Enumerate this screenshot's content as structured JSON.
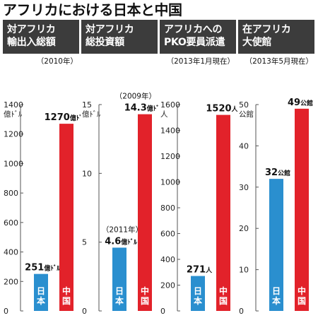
{
  "title": "アフリカにおける日本と中国",
  "chart_data": [
    {
      "type": "bar",
      "title_lines": [
        "対アフリカ",
        "輸出入総額"
      ],
      "note": "（2010年）",
      "unit": "億ドル",
      "unit_lines": [
        "1400",
        "億ﾄﾞﾙ"
      ],
      "ylim": [
        0,
        1400
      ],
      "yticks": [
        0,
        200,
        400,
        600,
        800,
        1000,
        1200,
        1400
      ],
      "ytick_labels": [
        "0",
        "200",
        "400",
        "600",
        "800",
        "1000",
        "1200",
        ""
      ],
      "categories": [
        "日本",
        "中国"
      ],
      "values": [
        251,
        1270
      ],
      "value_labels": [
        {
          "num": "251",
          "unit": "億ﾄﾞﾙ"
        },
        {
          "num": "1270",
          "unit": "億ﾄﾞﾙ"
        }
      ],
      "bar_notes": [
        "",
        ""
      ]
    },
    {
      "type": "bar",
      "title_lines": [
        "対アフリカ",
        "総投資額"
      ],
      "note": "",
      "unit": "億ドル",
      "unit_lines": [
        "15",
        "億ﾄﾞﾙ"
      ],
      "ylim": [
        0,
        15
      ],
      "yticks": [
        0,
        5,
        10,
        15
      ],
      "ytick_labels": [
        "0",
        "5",
        "10",
        ""
      ],
      "categories": [
        "日本",
        "中国"
      ],
      "values": [
        4.6,
        14.3
      ],
      "value_labels": [
        {
          "num": "4.6",
          "unit": "億ﾄﾞﾙ"
        },
        {
          "num": "14.3",
          "unit": "億ﾄﾞﾙ"
        }
      ],
      "bar_notes": [
        "（2011年）",
        "（2009年）"
      ]
    },
    {
      "type": "bar",
      "title_lines": [
        "アフリカへの",
        "PKO要員派遣"
      ],
      "note": "（2013年1月現在）",
      "unit": "人",
      "unit_lines": [
        "1600",
        "人"
      ],
      "ylim": [
        0,
        1600
      ],
      "yticks": [
        0,
        200,
        400,
        600,
        800,
        1000,
        1200,
        1400,
        1600
      ],
      "ytick_labels": [
        "0",
        "200",
        "400",
        "600",
        "800",
        "1000",
        "1200",
        "1400",
        ""
      ],
      "categories": [
        "日本",
        "中国"
      ],
      "values": [
        271,
        1520
      ],
      "value_labels": [
        {
          "num": "271",
          "unit": "人"
        },
        {
          "num": "1520",
          "unit": "人"
        }
      ],
      "bar_notes": [
        "",
        ""
      ]
    },
    {
      "type": "bar",
      "title_lines": [
        "在アフリカ",
        "大使館"
      ],
      "note": "（2013年5月現在）",
      "unit": "公館",
      "unit_lines": [
        "50",
        "公館"
      ],
      "ylim": [
        0,
        50
      ],
      "yticks": [
        0,
        10,
        20,
        30,
        40,
        50
      ],
      "ytick_labels": [
        "0",
        "10",
        "20",
        "30",
        "40",
        ""
      ],
      "categories": [
        "日本",
        "中国"
      ],
      "values": [
        32,
        49
      ],
      "value_labels": [
        {
          "num": "32",
          "unit": "公館"
        },
        {
          "num": "49",
          "unit": "公館"
        }
      ],
      "bar_notes": [
        "",
        ""
      ]
    }
  ],
  "colors": {
    "japan": "#2a8fcf",
    "china": "#e2222a",
    "header_bg": "#3c3c3c",
    "axis": "#555555"
  }
}
